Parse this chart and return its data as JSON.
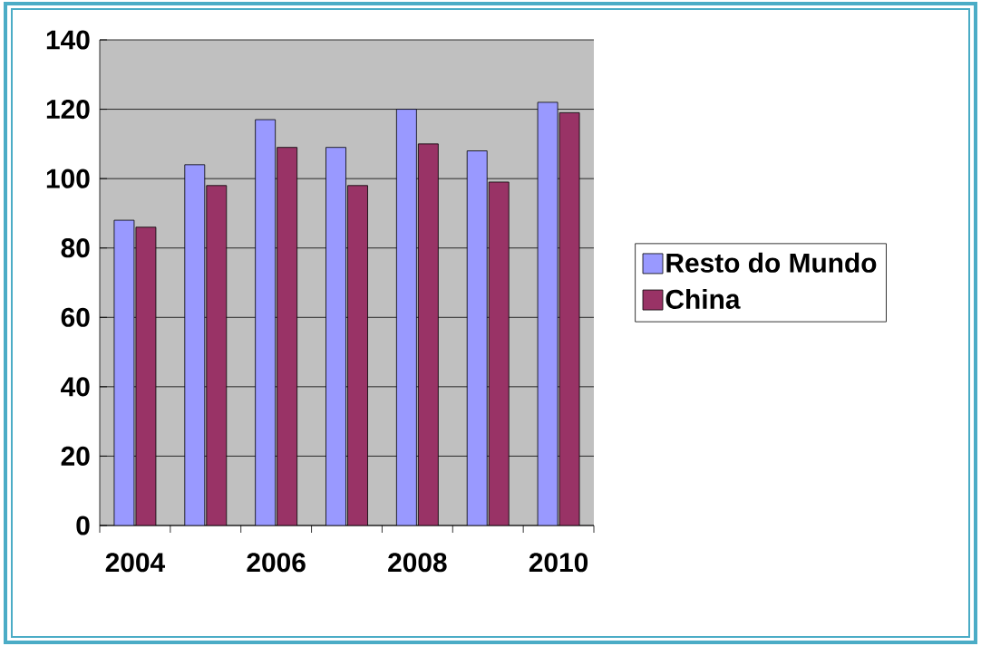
{
  "chart_data": {
    "type": "bar",
    "categories": [
      "2004",
      null,
      "2006",
      null,
      "2008",
      null,
      "2010"
    ],
    "series": [
      {
        "name": "Resto do Mundo",
        "color": "#9999ff",
        "values": [
          88,
          104,
          117,
          109,
          120,
          108,
          122
        ]
      },
      {
        "name": "China",
        "color": "#993366",
        "values": [
          86,
          98,
          109,
          98,
          110,
          99,
          119
        ]
      }
    ],
    "ylim": [
      0,
      140
    ],
    "yticks": [
      0,
      20,
      40,
      60,
      80,
      100,
      120,
      140
    ],
    "grid": "y",
    "legend": "right"
  }
}
